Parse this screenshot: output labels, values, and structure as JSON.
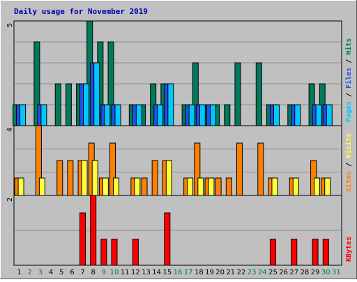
{
  "chart_data": {
    "type": "bar",
    "title": "Daily usage for November 2019",
    "categories": [
      "1",
      "2",
      "3",
      "4",
      "5",
      "6",
      "7",
      "8",
      "9",
      "10",
      "11",
      "12",
      "13",
      "14",
      "15",
      "16",
      "17",
      "18",
      "19",
      "20",
      "21",
      "22",
      "23",
      "24",
      "25",
      "26",
      "27",
      "28",
      "29",
      "30",
      "31"
    ],
    "weekend_days": [
      "2",
      "3",
      "9",
      "10",
      "16",
      "17",
      "23",
      "24",
      "30",
      "31"
    ],
    "colors": {
      "background": "#c0c0c0",
      "title": "#0000b0",
      "weekday_label": "#000000",
      "weekend_label": "#007a40",
      "pages": "#00c8ff",
      "files": "#2050f0",
      "hits": "#007a5a",
      "sites": "#ffff40",
      "visits": "#ff8000",
      "kbytes": "#ff0000"
    },
    "panels": [
      {
        "id": "hits-files-pages",
        "max": 5,
        "axis_label": "5",
        "legend": [
          {
            "name": "Pages",
            "color": "#00c8ff"
          },
          {
            "name": "Files",
            "color": "#2050f0"
          },
          {
            "name": "Hits",
            "color": "#007a5a"
          }
        ],
        "legend_sep": "/",
        "series": [
          {
            "name": "Hits",
            "values": [
              1,
              0,
              4,
              0,
              2,
              2,
              2,
              5,
              4,
              4,
              0,
              1,
              1,
              2,
              2,
              0,
              1,
              3,
              1,
              1,
              1,
              3,
              0,
              3,
              1,
              0,
              1,
              0,
              2,
              2,
              0
            ]
          },
          {
            "name": "Files",
            "values": [
              1,
              0,
              1,
              0,
              0,
              0,
              2,
              3,
              1,
              1,
              0,
              1,
              0,
              1,
              2,
              0,
              1,
              1,
              1,
              0,
              0,
              0,
              0,
              0,
              1,
              0,
              1,
              0,
              1,
              1,
              0
            ]
          },
          {
            "name": "Pages",
            "values": [
              1,
              0,
              1,
              0,
              0,
              0,
              2,
              3,
              1,
              1,
              0,
              1,
              0,
              1,
              2,
              0,
              1,
              1,
              1,
              0,
              0,
              0,
              0,
              0,
              1,
              0,
              1,
              0,
              1,
              1,
              0
            ]
          }
        ]
      },
      {
        "id": "visits-sites",
        "max": 4,
        "axis_label": "4",
        "legend": [
          {
            "name": "Sites",
            "color": "#ff8000"
          },
          {
            "name": "Visits",
            "color": "#ffff40"
          }
        ],
        "legend_sep": "/",
        "series": [
          {
            "name": "Visits",
            "values": [
              1,
              0,
              4,
              0,
              2,
              2,
              2,
              3,
              1,
              3,
              0,
              1,
              1,
              2,
              2,
              0,
              1,
              3,
              1,
              1,
              1,
              3,
              0,
              3,
              1,
              0,
              1,
              0,
              2,
              1,
              0
            ]
          },
          {
            "name": "Sites",
            "values": [
              1,
              0,
              1,
              0,
              0,
              0,
              2,
              2,
              1,
              1,
              0,
              1,
              0,
              0,
              2,
              0,
              1,
              1,
              1,
              0,
              0,
              0,
              0,
              0,
              1,
              0,
              1,
              0,
              1,
              1,
              0
            ]
          }
        ]
      },
      {
        "id": "kbytes",
        "max": 2,
        "axis_label": "2",
        "legend": [
          {
            "name": "KBytes",
            "color": "#ff0000"
          }
        ],
        "legend_sep": "",
        "series": [
          {
            "name": "KBytes",
            "values": [
              0,
              0,
              0,
              0,
              0,
              0,
              1.5,
              2,
              0.75,
              0.75,
              0,
              0.75,
              0,
              0,
              1.5,
              0,
              0,
              0,
              0,
              0,
              0,
              0,
              0,
              0,
              0.75,
              0,
              0.75,
              0,
              0.75,
              0.75,
              0
            ]
          }
        ]
      }
    ]
  }
}
